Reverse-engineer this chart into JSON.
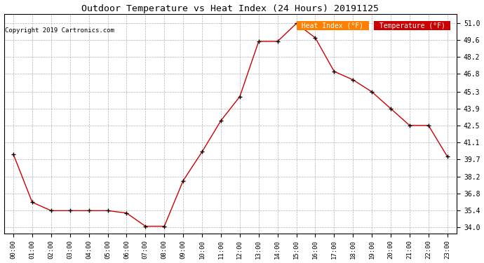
{
  "title": "Outdoor Temperature vs Heat Index (24 Hours) 20191125",
  "copyright": "Copyright 2019 Cartronics.com",
  "hours": [
    "00:00",
    "01:00",
    "02:00",
    "03:00",
    "04:00",
    "05:00",
    "06:00",
    "07:00",
    "08:00",
    "09:00",
    "10:00",
    "11:00",
    "12:00",
    "13:00",
    "14:00",
    "15:00",
    "16:00",
    "17:00",
    "18:00",
    "19:00",
    "20:00",
    "21:00",
    "22:00",
    "23:00"
  ],
  "temperature": [
    40.1,
    36.1,
    35.4,
    35.4,
    35.4,
    35.4,
    35.2,
    34.1,
    34.1,
    37.9,
    40.3,
    42.9,
    44.9,
    49.5,
    49.5,
    51.0,
    49.8,
    47.0,
    46.3,
    45.3,
    43.9,
    42.5,
    42.5,
    39.9
  ],
  "line_color": "#cc0000",
  "marker_color": "#000000",
  "bg_color": "#ffffff",
  "grid_color": "#aaaaaa",
  "ylim_min": 33.5,
  "ylim_max": 51.8,
  "yticks": [
    34.0,
    35.4,
    36.8,
    38.2,
    39.7,
    41.1,
    42.5,
    43.9,
    45.3,
    46.8,
    48.2,
    49.6,
    51.0
  ],
  "legend_heat_index_bg": "#ff8000",
  "legend_temp_bg": "#cc0000",
  "legend_heat_index_label": "Heat Index (°F)",
  "legend_temp_label": "Temperature (°F)"
}
